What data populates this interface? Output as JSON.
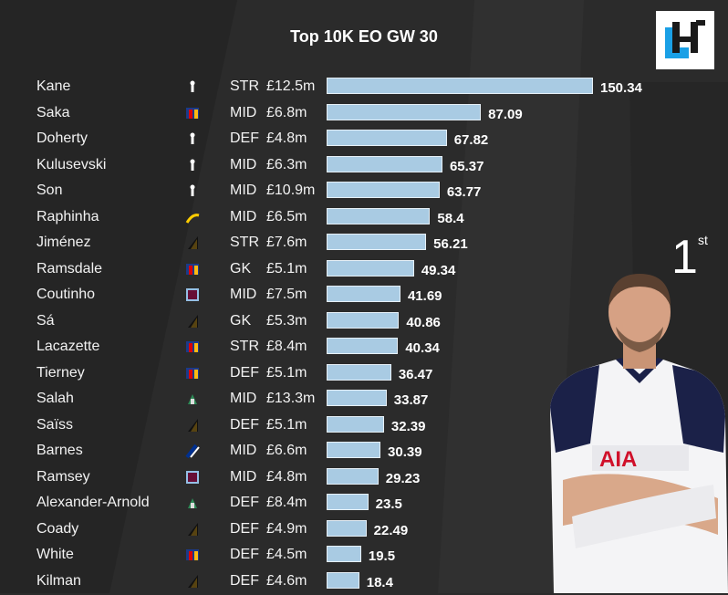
{
  "header": {
    "title": "Top 10K EO GW 30"
  },
  "rank": {
    "number": "1",
    "suffix": "st"
  },
  "icons": {
    "logo": "hitc-logo-icon",
    "player": "player-photo"
  },
  "colors": {
    "bar": "#a9cbe3",
    "background": "#2b2b2b"
  },
  "chart_data": {
    "type": "bar",
    "orientation": "horizontal",
    "title": "Top 10K EO GW 30",
    "xlim": [
      0,
      150.34
    ],
    "categories": [
      "Kane",
      "Saka",
      "Doherty",
      "Kulusevski",
      "Son",
      "Raphinha",
      "Jiménez",
      "Ramsdale",
      "Coutinho",
      "Sá",
      "Lacazette",
      "Tierney",
      "Salah",
      "Saïss",
      "Barnes",
      "Ramsey",
      "Alexander-Arnold",
      "Coady",
      "White",
      "Kilman"
    ],
    "values": [
      150.34,
      87.09,
      67.82,
      65.37,
      63.77,
      58.4,
      56.21,
      49.34,
      41.69,
      40.86,
      40.34,
      36.47,
      33.87,
      32.39,
      30.39,
      29.23,
      23.5,
      22.49,
      19.5,
      18.4
    ],
    "value_labels": [
      "150.34",
      "87.09",
      "67.82",
      "65.37",
      "63.77",
      "58.4",
      "56.21",
      "49.34",
      "41.69",
      "40.86",
      "40.34",
      "36.47",
      "33.87",
      "32.39",
      "30.39",
      "29.23",
      "23.5",
      "22.49",
      "19.5",
      "18.4"
    ],
    "positions": [
      "STR",
      "MID",
      "DEF",
      "MID",
      "MID",
      "MID",
      "STR",
      "GK",
      "MID",
      "GK",
      "STR",
      "DEF",
      "MID",
      "DEF",
      "MID",
      "MID",
      "DEF",
      "DEF",
      "DEF",
      "DEF"
    ],
    "prices": [
      "£12.5m",
      "£6.8m",
      "£4.8m",
      "£6.3m",
      "£10.9m",
      "£6.5m",
      "£7.6m",
      "£5.1m",
      "£7.5m",
      "£5.3m",
      "£8.4m",
      "£5.1m",
      "£13.3m",
      "£5.1m",
      "£6.6m",
      "£4.8m",
      "£8.4m",
      "£4.9m",
      "£4.5m",
      "£4.6m"
    ],
    "badges": [
      "tottenham-badge-icon",
      "arsenal-badge-icon",
      "tottenham-badge-icon",
      "tottenham-badge-icon",
      "tottenham-badge-icon",
      "leeds-badge-icon",
      "wolves-badge-icon",
      "arsenal-badge-icon",
      "aston-villa-badge-icon",
      "wolves-badge-icon",
      "arsenal-badge-icon",
      "arsenal-badge-icon",
      "liverpool-badge-icon",
      "wolves-badge-icon",
      "leicester-badge-icon",
      "aston-villa-badge-icon",
      "liverpool-badge-icon",
      "wolves-badge-icon",
      "arsenal-badge-icon",
      "wolves-badge-icon"
    ],
    "badge_colors": {
      "tottenham-badge-icon": "#ffffff",
      "arsenal-badge-icon": "#db0007",
      "leeds-badge-icon": "#ffcd00",
      "wolves-badge-icon": "#fdb913",
      "aston-villa-badge-icon": "#95bfe5",
      "liverpool-badge-icon": "#c8102e",
      "leicester-badge-icon": "#003090"
    }
  }
}
